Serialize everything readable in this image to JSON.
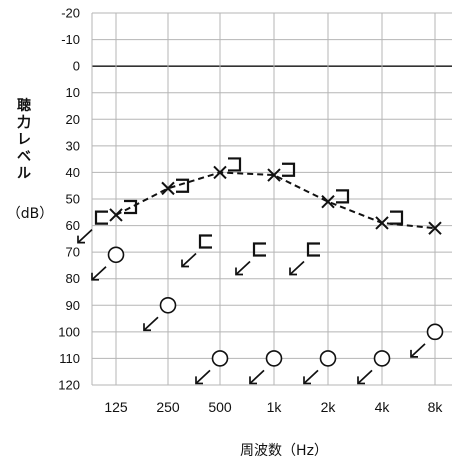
{
  "chart_data": {
    "type": "audiogram",
    "xlabel": "周波数（Hz）",
    "ylabel_chars": [
      "聴",
      "力",
      "レ",
      "ベ",
      "ル"
    ],
    "ylabel_unit": "（dB）",
    "x_categories": [
      "125",
      "250",
      "500",
      "1k",
      "2k",
      "4k",
      "8k"
    ],
    "y_ticks": [
      -20,
      -10,
      0,
      10,
      20,
      30,
      40,
      50,
      60,
      70,
      80,
      90,
      100,
      110,
      120
    ],
    "ylim": [
      -20,
      120
    ],
    "y_inverted": true,
    "grid": true,
    "series": [
      {
        "symbol": "x",
        "connected": true,
        "values": [
          56,
          46,
          40,
          41,
          51,
          59,
          61
        ]
      },
      {
        "symbol": "]",
        "connected": false,
        "values": [
          53,
          45,
          37,
          39,
          49,
          57,
          null
        ]
      },
      {
        "symbol": "[",
        "connected": false,
        "values": [
          57,
          null,
          66,
          69,
          69,
          null,
          null
        ]
      },
      {
        "symbol": "o",
        "connected": false,
        "values": [
          71,
          90,
          110,
          110,
          110,
          110,
          100
        ]
      }
    ]
  }
}
